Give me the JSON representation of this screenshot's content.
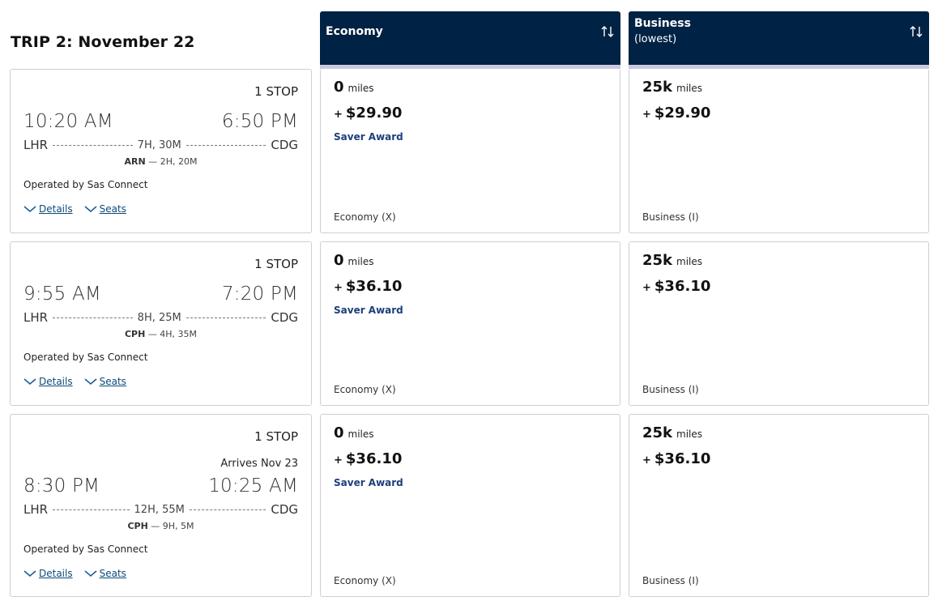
{
  "trip": {
    "title": "TRIP 2: November 22"
  },
  "columns": [
    {
      "title": "Economy",
      "subtitle": "",
      "sort_icon": "sort-arrows-icon"
    },
    {
      "title": "Business",
      "subtitle": "(lowest)",
      "sort_icon": "sort-arrows-icon"
    }
  ],
  "colors": {
    "header_bg": "#002244",
    "header_bar": "#c9cae0",
    "saver": "#1d3f7a",
    "link": "#0c4b7a"
  },
  "flights": [
    {
      "stops": "1 STOP",
      "arrives": "",
      "depart_time": "10:20 AM",
      "arrive_time": "6:50 PM",
      "origin": "LHR",
      "destination": "CDG",
      "duration": "7H, 30M",
      "layover_code": "ARN",
      "layover_time": "2H, 20M",
      "operated": "Operated by Sas Connect",
      "details_label": "Details",
      "seats_label": "Seats",
      "economy": {
        "miles": "0",
        "miles_unit": "miles",
        "plus": "+",
        "price": "$29.90",
        "saver": "Saver Award",
        "cabin": "Economy (X)"
      },
      "business": {
        "miles": "25k",
        "miles_unit": "miles",
        "plus": "+",
        "price": "$29.90",
        "cabin": "Business (I)"
      }
    },
    {
      "stops": "1 STOP",
      "arrives": "",
      "depart_time": "9:55 AM",
      "arrive_time": "7:20 PM",
      "origin": "LHR",
      "destination": "CDG",
      "duration": "8H, 25M",
      "layover_code": "CPH",
      "layover_time": "4H, 35M",
      "operated": "Operated by Sas Connect",
      "details_label": "Details",
      "seats_label": "Seats",
      "economy": {
        "miles": "0",
        "miles_unit": "miles",
        "plus": "+",
        "price": "$36.10",
        "saver": "Saver Award",
        "cabin": "Economy (X)"
      },
      "business": {
        "miles": "25k",
        "miles_unit": "miles",
        "plus": "+",
        "price": "$36.10",
        "cabin": "Business (I)"
      }
    },
    {
      "stops": "1 STOP",
      "arrives": "Arrives Nov 23",
      "depart_time": "8:30 PM",
      "arrive_time": "10:25 AM",
      "origin": "LHR",
      "destination": "CDG",
      "duration": "12H, 55M",
      "layover_code": "CPH",
      "layover_time": "9H, 5M",
      "operated": "Operated by Sas Connect",
      "details_label": "Details",
      "seats_label": "Seats",
      "economy": {
        "miles": "0",
        "miles_unit": "miles",
        "plus": "+",
        "price": "$36.10",
        "saver": "Saver Award",
        "cabin": "Economy (X)"
      },
      "business": {
        "miles": "25k",
        "miles_unit": "miles",
        "plus": "+",
        "price": "$36.10",
        "cabin": "Business (I)"
      }
    }
  ]
}
